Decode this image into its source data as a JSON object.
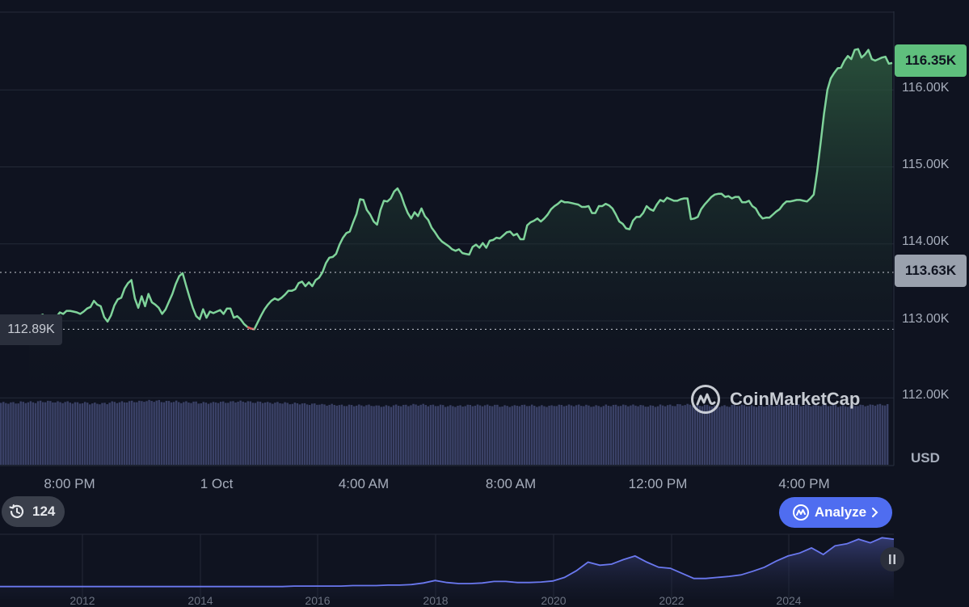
{
  "chart_data": {
    "type": "area",
    "currency": "USD",
    "ylim": [
      111700,
      116700
    ],
    "y_ticks": [
      {
        "value": 116000,
        "label": "116.00K"
      },
      {
        "value": 115000,
        "label": "115.00K"
      },
      {
        "value": 114000,
        "label": "114.00K"
      },
      {
        "value": 113000,
        "label": "113.00K"
      },
      {
        "value": 112000,
        "label": "112.00K"
      }
    ],
    "x_ticks": [
      "8:00 PM",
      "1 Oct",
      "4:00 AM",
      "8:00 AM",
      "12:00 PM",
      "4:00 PM"
    ],
    "current_price_label": "116.35K",
    "reference_price_label": "113.63K",
    "reference_price": 113630,
    "low_price_label": "112.89K",
    "low_price": 112890,
    "series": [
      {
        "values": [
          113010,
          113010,
          113030,
          113060,
          113080,
          113020,
          113000,
          112990,
          113050,
          113110,
          113090,
          113130,
          113130,
          113120,
          113110,
          113090,
          113120,
          113160,
          113180,
          113260,
          113210,
          113190,
          113050,
          112990,
          113070,
          113200,
          113280,
          113300,
          113420,
          113490,
          113530,
          113290,
          113170,
          113320,
          113190,
          113350,
          113240,
          113210,
          113170,
          113090,
          113150,
          113250,
          113350,
          113480,
          113580,
          113620,
          113460,
          113310,
          113170,
          113060,
          113020,
          113150,
          113040,
          113120,
          113100,
          113120,
          113140,
          113090,
          113160,
          113160,
          113040,
          113060,
          113020,
          112960,
          112920,
          112900,
          112890,
          112980,
          113070,
          113150,
          113210,
          113260,
          113290,
          113270,
          113300,
          113340,
          113390,
          113390,
          113410,
          113490,
          113510,
          113450,
          113500,
          113450,
          113530,
          113560,
          113630,
          113750,
          113820,
          113830,
          113870,
          113990,
          114080,
          114140,
          114160,
          114280,
          114390,
          114580,
          114570,
          114440,
          114380,
          114290,
          114250,
          114440,
          114560,
          114550,
          114590,
          114680,
          114720,
          114640,
          114510,
          114400,
          114330,
          114410,
          114360,
          114460,
          114360,
          114310,
          114210,
          114150,
          114080,
          114030,
          114000,
          113970,
          113930,
          113910,
          113930,
          113880,
          113870,
          113860,
          113960,
          113990,
          113950,
          114010,
          113950,
          114040,
          114050,
          114080,
          114070,
          114110,
          114150,
          114160,
          114110,
          114130,
          114060,
          114060,
          114240,
          114280,
          114300,
          114330,
          114290,
          114330,
          114380,
          114450,
          114490,
          114520,
          114560,
          114540,
          114540,
          114530,
          114520,
          114510,
          114480,
          114480,
          114490,
          114400,
          114400,
          114490,
          114490,
          114520,
          114500,
          114460,
          114380,
          114290,
          114260,
          114200,
          114190,
          114300,
          114350,
          114350,
          114400,
          114490,
          114450,
          114430,
          114510,
          114570,
          114550,
          114600,
          114580,
          114560,
          114560,
          114580,
          114590,
          114590,
          114320,
          114330,
          114350,
          114450,
          114510,
          114560,
          114610,
          114640,
          114650,
          114650,
          114610,
          114620,
          114590,
          114610,
          114610,
          114540,
          114540,
          114560,
          114490,
          114460,
          114380,
          114330,
          114340,
          114340,
          114380,
          114420,
          114450,
          114510,
          114550,
          114550,
          114560,
          114570,
          114570,
          114560,
          114550,
          114590,
          114640,
          114940,
          115310,
          115690,
          116000,
          116150,
          116220,
          116280,
          116290,
          116380,
          116440,
          116400,
          116520,
          116530,
          116420,
          116460,
          116520,
          116400,
          116380,
          116400,
          116420,
          116430,
          116340,
          116350
        ]
      }
    ]
  },
  "volume_bars_relative": [
    0.96,
    0.97,
    0.98,
    0.97,
    0.96,
    0.95,
    0.97,
    0.98,
    0.99,
    0.98,
    0.97,
    0.96,
    0.97,
    0.98,
    0.97,
    0.96,
    0.95,
    0.94,
    0.93,
    0.92,
    0.92,
    0.91,
    0.92,
    0.93,
    0.92,
    0.91,
    0.92,
    0.92,
    0.91,
    0.92,
    0.91,
    0.92,
    0.92,
    0.91,
    0.92,
    0.92,
    0.91,
    0.92,
    0.93,
    0.92,
    0.91,
    0.92,
    0.91,
    0.92,
    0.93,
    0.92,
    0.92,
    0.91,
    0.92,
    0.93
  ],
  "navigator": {
    "values": [
      0.02,
      0.02,
      0.02,
      0.02,
      0.02,
      0.02,
      0.02,
      0.02,
      0.02,
      0.02,
      0.02,
      0.02,
      0.02,
      0.02,
      0.02,
      0.02,
      0.02,
      0.02,
      0.02,
      0.02,
      0.02,
      0.02,
      0.02,
      0.02,
      0.02,
      0.03,
      0.03,
      0.03,
      0.03,
      0.03,
      0.04,
      0.04,
      0.04,
      0.05,
      0.05,
      0.06,
      0.09,
      0.14,
      0.1,
      0.08,
      0.08,
      0.09,
      0.12,
      0.12,
      0.1,
      0.1,
      0.11,
      0.13,
      0.2,
      0.33,
      0.5,
      0.44,
      0.46,
      0.55,
      0.62,
      0.5,
      0.4,
      0.38,
      0.28,
      0.18,
      0.18,
      0.2,
      0.22,
      0.25,
      0.32,
      0.4,
      0.52,
      0.62,
      0.68,
      0.78,
      0.65,
      0.82,
      0.86,
      0.95,
      0.88,
      0.98,
      0.95
    ],
    "year_labels": [
      "2012",
      "2014",
      "2016",
      "2018",
      "2020",
      "2022",
      "2024"
    ]
  },
  "watermark": {
    "brand": "CoinMarketCap"
  },
  "controls": {
    "history_count": "124",
    "analyze_label": "Analyze"
  },
  "colors": {
    "background": "#0f1320",
    "line": "#7fd39a",
    "area_top": "#2d5a3f",
    "volume": "#3a4166",
    "navigator_line": "#6a78ef",
    "analyze_button": "#4f6df0",
    "low_dot": "#e05a5a"
  }
}
